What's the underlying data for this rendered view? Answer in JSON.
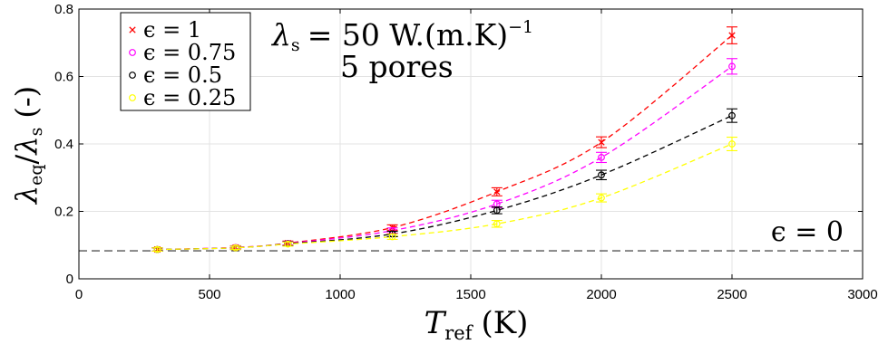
{
  "chart_data": {
    "type": "scatter",
    "xlim": [
      0,
      3000
    ],
    "ylim": [
      0,
      0.8
    ],
    "x_ticks": [
      0,
      500,
      1000,
      1500,
      2000,
      2500,
      3000
    ],
    "y_ticks": [
      0,
      0.2,
      0.4,
      0.6,
      0.8
    ],
    "x_tick_labels": [
      "0",
      "500",
      "1000",
      "1500",
      "2000",
      "2500",
      "3000"
    ],
    "y_tick_labels": [
      "0",
      "0.2",
      "0.4",
      "0.6",
      "0.8"
    ],
    "xlabel": {
      "var": "T",
      "sub": "ref",
      "unit": "(K)"
    },
    "ylabel": {
      "var1": "λ",
      "sub1": "eq",
      "var2": "λ",
      "sub2": "s",
      "unit": "(-)"
    },
    "grid": true,
    "legend_position": "top-left",
    "annotation": {
      "line1_var": "λ",
      "line1_sub": "s",
      "line1_eq": "= 50 W.(m.K)",
      "line1_sup": "−1",
      "line2": "5 pores"
    },
    "baseline": {
      "label": "ϵ = 0",
      "y": 0.083,
      "color": "#555555"
    },
    "series": [
      {
        "name": "ϵ = 1",
        "marker": "x",
        "color": "#ff0000",
        "x": [
          300,
          600,
          800,
          1200,
          1600,
          2000,
          2500
        ],
        "y": [
          0.087,
          0.093,
          0.106,
          0.152,
          0.258,
          0.405,
          0.722
        ],
        "err": [
          0.005,
          0.005,
          0.006,
          0.008,
          0.012,
          0.016,
          0.025
        ]
      },
      {
        "name": "ϵ = 0.75",
        "marker": "o",
        "color": "#ff00ff",
        "x": [
          300,
          600,
          800,
          1200,
          1600,
          2000,
          2500
        ],
        "y": [
          0.087,
          0.093,
          0.105,
          0.143,
          0.222,
          0.36,
          0.63
        ],
        "err": [
          0.005,
          0.005,
          0.006,
          0.008,
          0.011,
          0.015,
          0.023
        ]
      },
      {
        "name": "ϵ = 0.5",
        "marker": "o",
        "color": "#000000",
        "x": [
          300,
          600,
          800,
          1200,
          1600,
          2000,
          2500
        ],
        "y": [
          0.087,
          0.092,
          0.104,
          0.133,
          0.203,
          0.308,
          0.484
        ],
        "err": [
          0.005,
          0.005,
          0.006,
          0.008,
          0.01,
          0.014,
          0.02
        ]
      },
      {
        "name": "ϵ = 0.25",
        "marker": "o",
        "color": "#ffff00",
        "x": [
          300,
          600,
          800,
          1200,
          1600,
          2000,
          2500
        ],
        "y": [
          0.087,
          0.092,
          0.103,
          0.125,
          0.163,
          0.24,
          0.4
        ],
        "err": [
          0.005,
          0.005,
          0.006,
          0.008,
          0.01,
          0.012,
          0.02
        ]
      }
    ]
  }
}
